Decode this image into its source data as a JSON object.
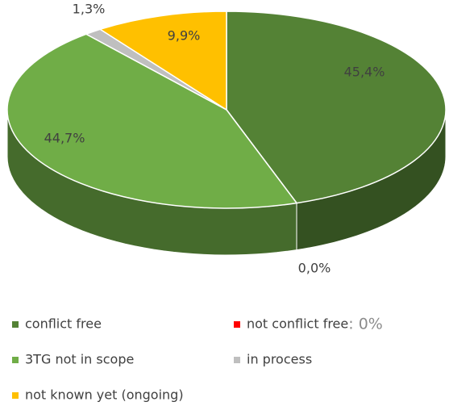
{
  "chart_data": {
    "type": "pie",
    "categories": [
      "conflict free",
      "not conflict free",
      "3TG not in scope",
      "in process",
      "not known yet (ongoing)"
    ],
    "values": [
      45.4,
      0.0,
      44.7,
      1.3,
      9.9
    ],
    "value_labels": [
      "45,4%",
      "0,0%",
      "44,7%",
      "1,3%",
      "9,9%"
    ],
    "colors": [
      "#548235",
      "#ff0000",
      "#70ad47",
      "#bfbfbf",
      "#ffc000"
    ],
    "legend_note": ": 0%",
    "legend": "bottom"
  }
}
